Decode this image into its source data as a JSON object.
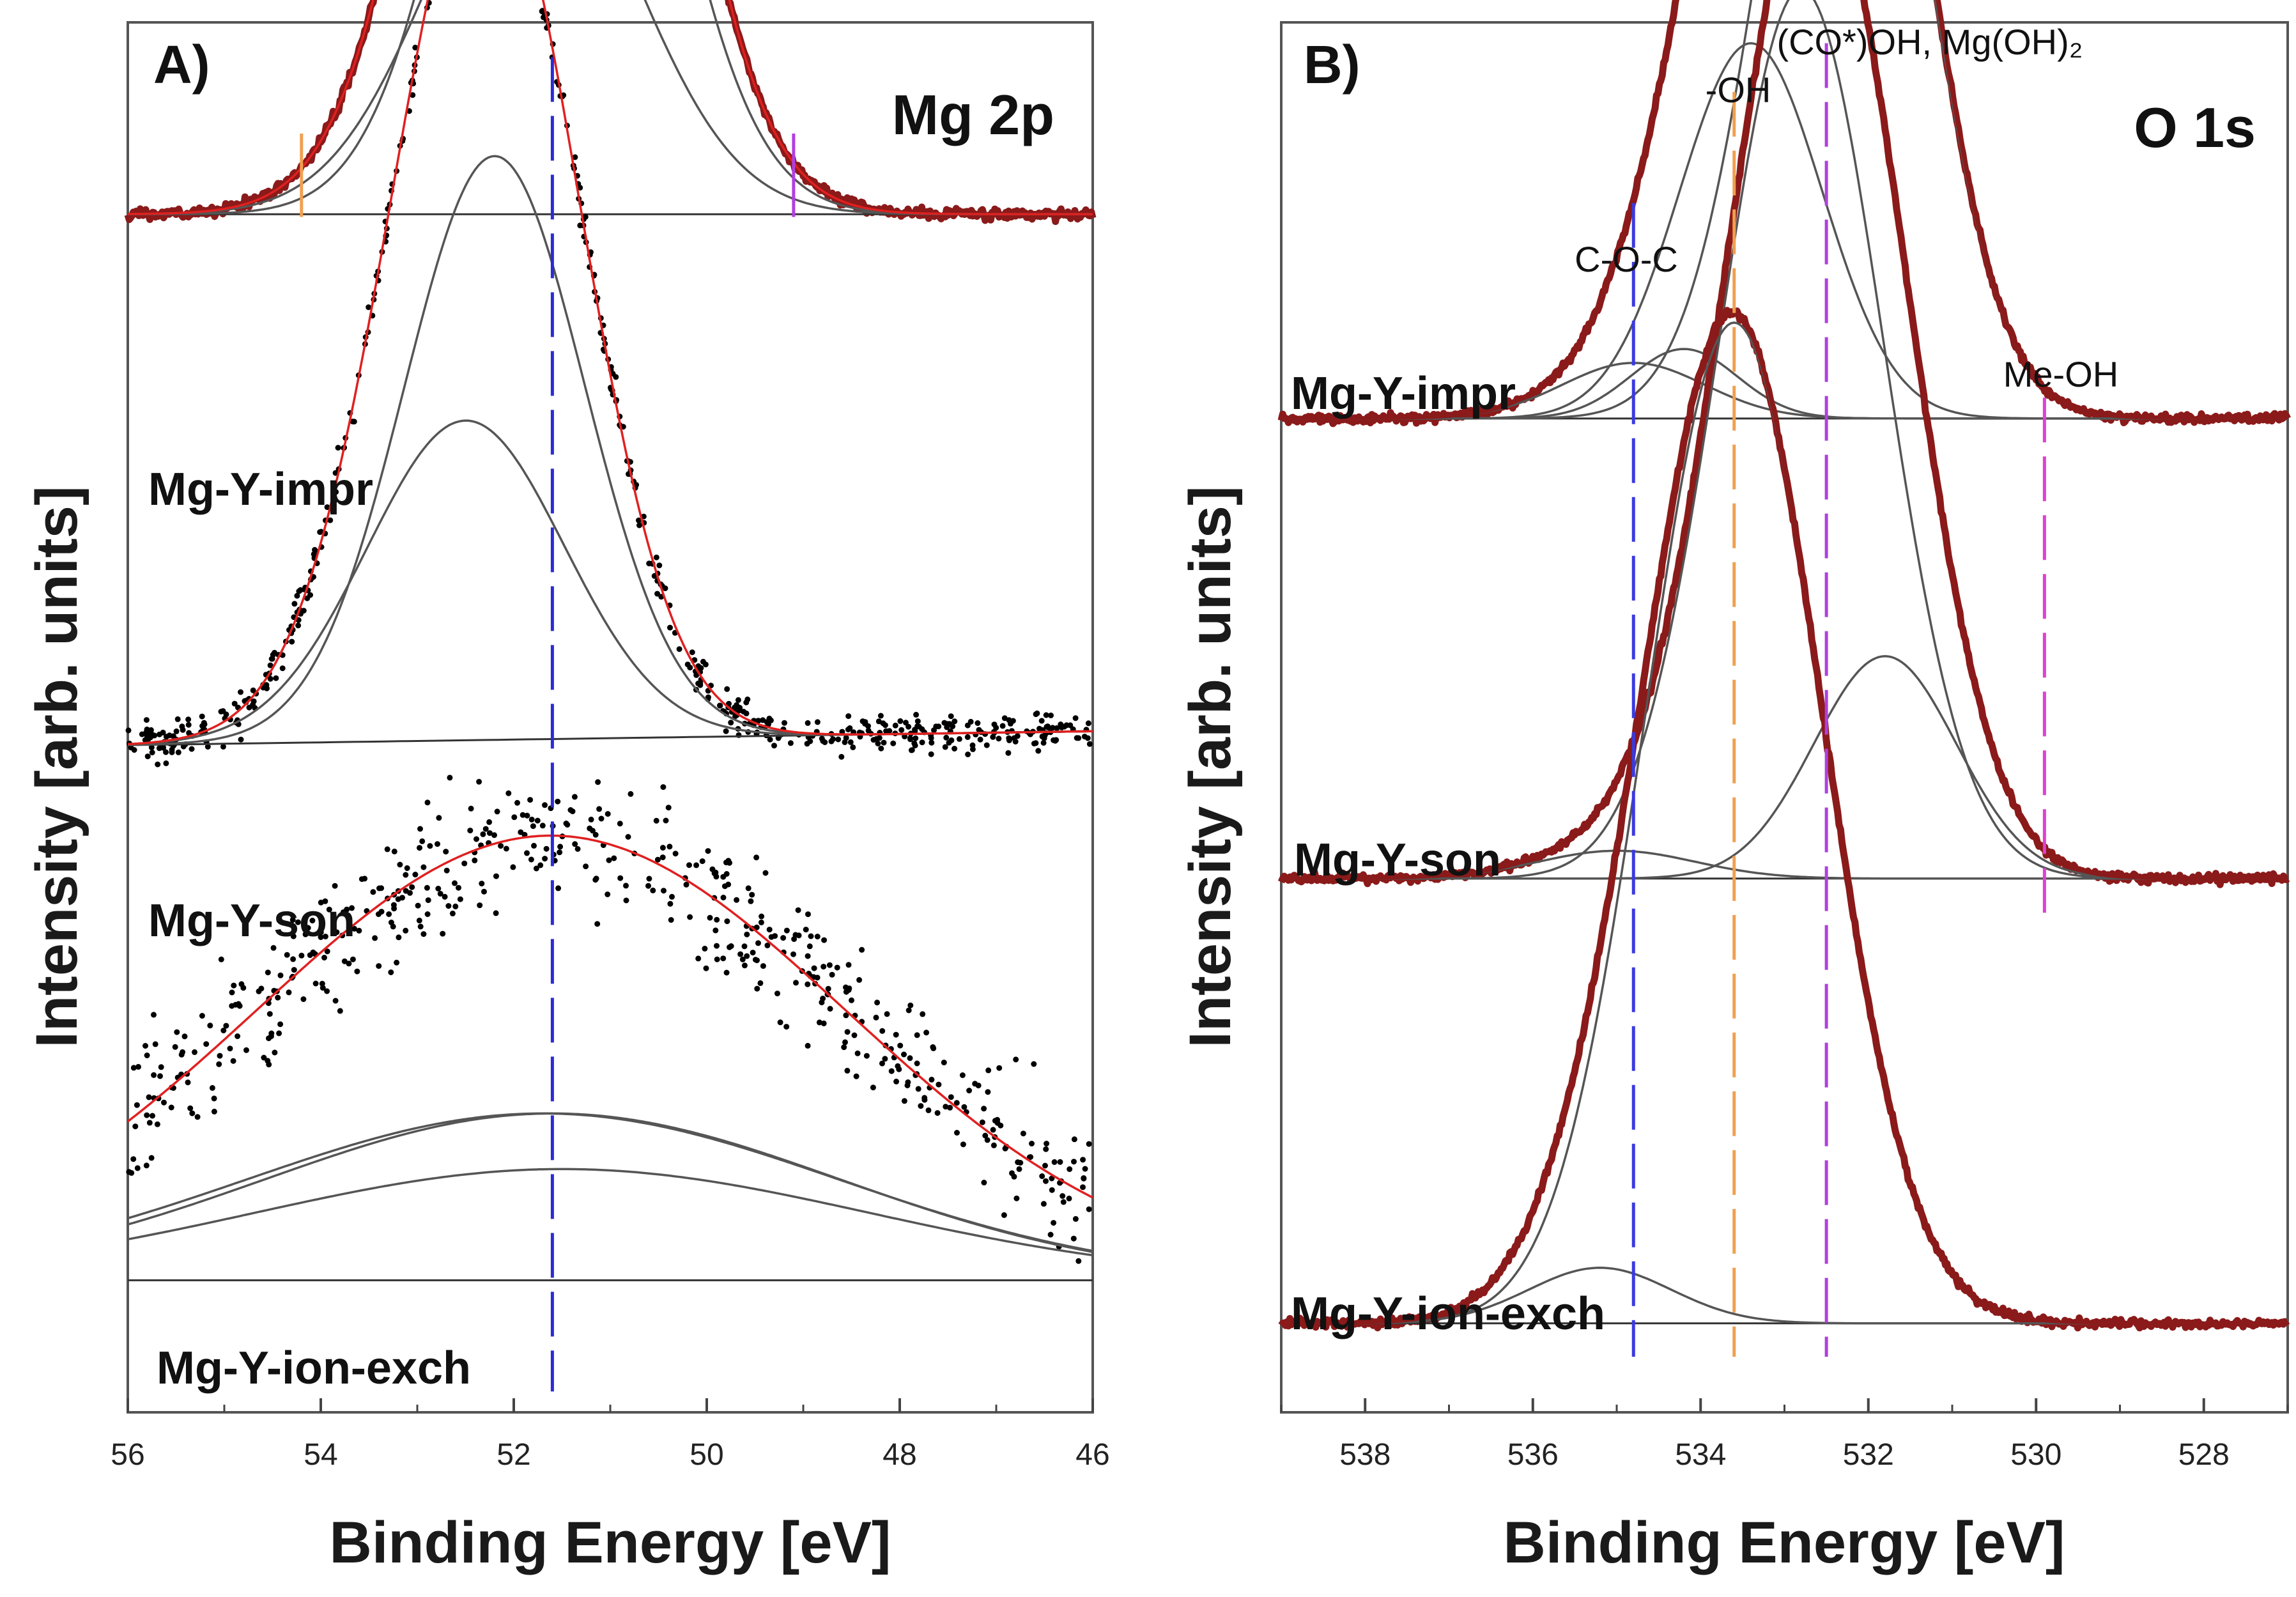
{
  "figure": {
    "caption": ""
  },
  "chart_data": [
    {
      "type": "line",
      "panel_label": "A)",
      "region_label": "Mg 2p",
      "xlabel": "Binding Energy [eV]",
      "ylabel": "Intensity [arb. units]",
      "xlim": [
        56,
        46
      ],
      "x_reversed": true,
      "xticks": [
        "56",
        "54",
        "52",
        "50",
        "48",
        "46"
      ],
      "xtick_values": [
        56,
        54,
        52,
        50,
        48,
        46
      ],
      "y_axis_ticks": false,
      "reference_lines": [
        {
          "x": 51.6,
          "color": "#2b2bd6",
          "style": "dashed",
          "span": "full"
        },
        {
          "x": 54.2,
          "color": "#f0a050",
          "style": "solid",
          "span": "short",
          "spectrum": 0
        },
        {
          "x": 49.1,
          "color": "#b040e0",
          "style": "solid",
          "span": "short",
          "spectrum": 0
        }
      ],
      "spectra": [
        {
          "sample": "Mg-Y-impr",
          "baseline": 0.862,
          "raw_noise": 0.004,
          "raw_color": "#8b1a1a",
          "fit_color": "#e02020",
          "components": [
            {
              "center": 51.5,
              "fwhm": 2.3,
              "height": 0.53
            },
            {
              "center": 51.8,
              "fwhm": 2.5,
              "height": 0.28
            }
          ]
        },
        {
          "sample": "Mg-Y-son",
          "baseline": 0.485,
          "baseline_slope": 0.01,
          "raw_noise": 0.014,
          "raw_color": "#000000",
          "fit_color": "#e02020",
          "components": [
            {
              "center": 52.2,
              "fwhm": 2.2,
              "height": 0.42
            },
            {
              "center": 52.5,
              "fwhm": 2.4,
              "height": 0.23
            }
          ]
        },
        {
          "sample": "Mg-Y-ion-exch",
          "baseline": 0.095,
          "raw_noise": 0.05,
          "raw_color": "#000000",
          "fit_color": "#e02020",
          "components": [
            {
              "center": 51.6,
              "fwhm": 7.0,
              "height": 0.12
            },
            {
              "center": 51.7,
              "fwhm": 7.2,
              "height": 0.12
            },
            {
              "center": 51.5,
              "fwhm": 7.5,
              "height": 0.08
            }
          ]
        }
      ]
    },
    {
      "type": "line",
      "panel_label": "B)",
      "region_label": "O 1s",
      "xlabel": "Binding Energy [eV]",
      "ylabel": "Intensity [arb. units]",
      "xlim": [
        539,
        527
      ],
      "x_reversed": true,
      "xticks": [
        "538",
        "536",
        "534",
        "532",
        "530",
        "528"
      ],
      "xtick_values": [
        538,
        536,
        534,
        532,
        530,
        528
      ],
      "y_axis_ticks": false,
      "reference_lines": [
        {
          "x": 534.8,
          "color": "#3a3ae0",
          "style": "dashed",
          "label": "C-O-C"
        },
        {
          "x": 533.6,
          "color": "#f0a050",
          "style": "dashed",
          "label": "-OH"
        },
        {
          "x": 532.5,
          "color": "#b040e0",
          "style": "dashed",
          "label": "(CO*)OH, Mg(OH)₂"
        },
        {
          "x": 529.9,
          "color": "#e040d0",
          "style": "dashed",
          "label": "Me-OH"
        }
      ],
      "spectra": [
        {
          "sample": "Mg-Y-impr",
          "baseline": 0.715,
          "raw_noise": 0.003,
          "raw_color": "#8b1a1a",
          "fit_color": "#8b1a1a",
          "components": [
            {
              "center": 532.3,
              "fwhm": 2.2,
              "height": 0.6
            },
            {
              "center": 533.4,
              "fwhm": 2.0,
              "height": 0.27
            },
            {
              "center": 534.2,
              "fwhm": 1.5,
              "height": 0.05
            },
            {
              "center": 534.8,
              "fwhm": 2.0,
              "height": 0.04
            }
          ]
        },
        {
          "sample": "Mg-Y-son",
          "baseline": 0.384,
          "raw_noise": 0.003,
          "raw_color": "#8b1a1a",
          "fit_color": "#8b1a1a",
          "components": [
            {
              "center": 532.8,
              "fwhm": 2.3,
              "height": 0.64
            },
            {
              "center": 531.8,
              "fwhm": 2.0,
              "height": 0.16
            },
            {
              "center": 535.0,
              "fwhm": 2.2,
              "height": 0.02
            }
          ]
        },
        {
          "sample": "Mg-Y-ion-exch",
          "baseline": 0.064,
          "raw_noise": 0.003,
          "raw_color": "#8b1a1a",
          "fit_color": "#8b1a1a",
          "components": [
            {
              "center": 533.6,
              "fwhm": 2.5,
              "height": 0.72
            },
            {
              "center": 535.2,
              "fwhm": 2.0,
              "height": 0.04
            }
          ]
        }
      ]
    }
  ]
}
